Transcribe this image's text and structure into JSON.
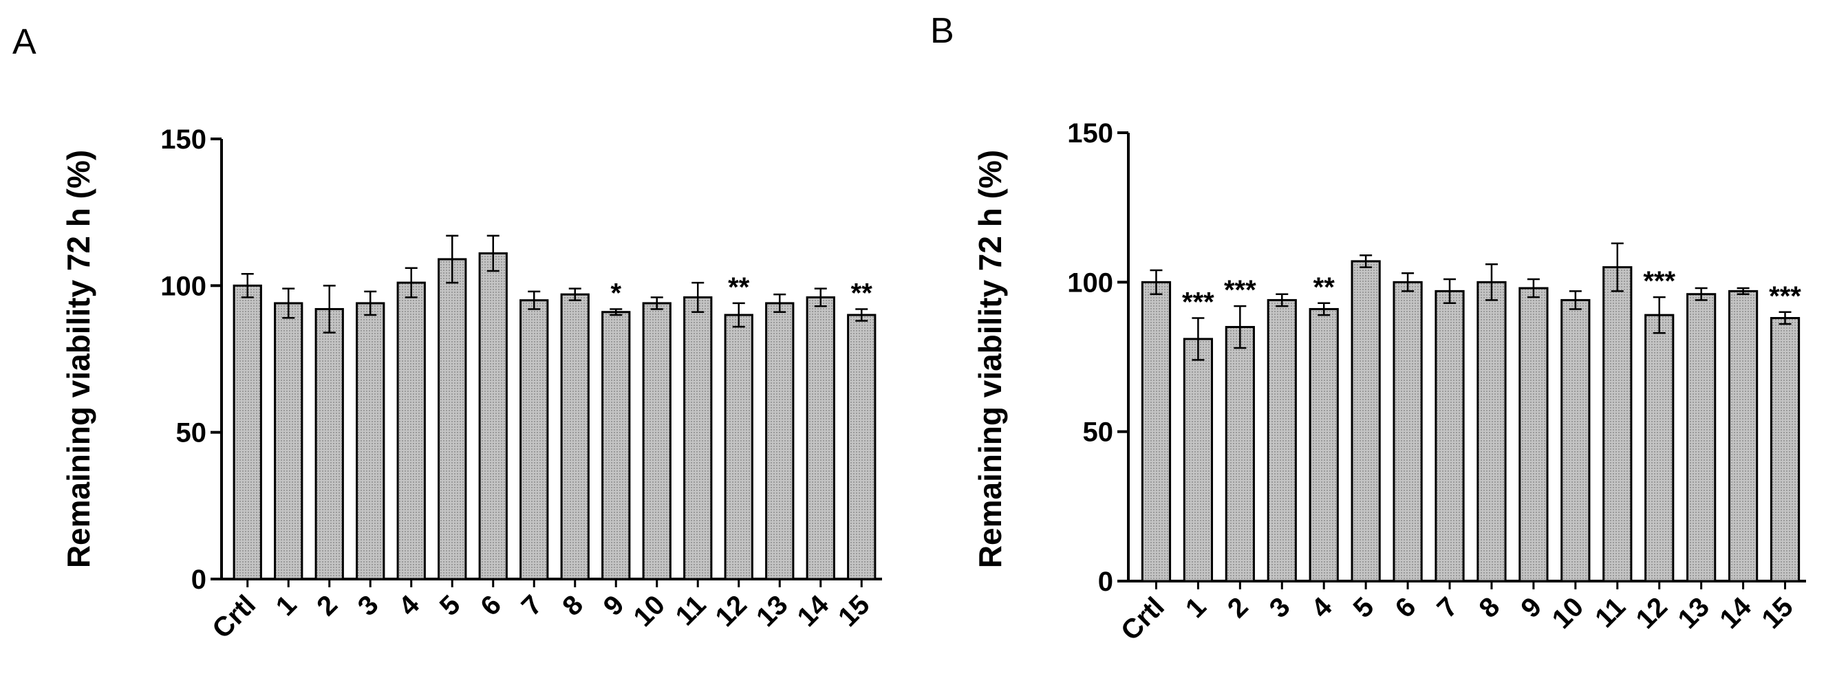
{
  "chart_data": [
    {
      "panel": "A",
      "type": "bar",
      "ylabel": "Remaining viability 72 h (%)",
      "xlabel": "",
      "ylim": [
        0,
        150
      ],
      "yticks": [
        "0",
        "50",
        "100",
        "150"
      ],
      "categories": [
        "Crtl",
        "1",
        "2",
        "3",
        "4",
        "5",
        "6",
        "7",
        "8",
        "9",
        "10",
        "11",
        "12",
        "13",
        "14",
        "15"
      ],
      "values": [
        100,
        94,
        92,
        94,
        101,
        109,
        111,
        95,
        97,
        91,
        94,
        96,
        90,
        94,
        96,
        90
      ],
      "errors": [
        4,
        5,
        8,
        4,
        5,
        8,
        6,
        3,
        2,
        1,
        2,
        5,
        4,
        3,
        3,
        2
      ],
      "annotations": [
        "",
        "",
        "",
        "",
        "",
        "",
        "",
        "",
        "",
        "*",
        "",
        "",
        "**",
        "",
        "",
        "**"
      ],
      "fill_color": "#b4b4b4"
    },
    {
      "panel": "B",
      "type": "bar",
      "ylabel": "Remaining viability 72 h (%)",
      "xlabel": "",
      "ylim": [
        0,
        150
      ],
      "yticks": [
        "0",
        "50",
        "100",
        "150"
      ],
      "categories": [
        "Crtl",
        "1",
        "2",
        "3",
        "4",
        "5",
        "6",
        "7",
        "8",
        "9",
        "10",
        "11",
        "12",
        "13",
        "14",
        "15"
      ],
      "values": [
        100,
        81,
        85,
        94,
        91,
        107,
        100,
        97,
        100,
        98,
        94,
        105,
        89,
        96,
        97,
        88
      ],
      "errors": [
        4,
        7,
        7,
        2,
        2,
        2,
        3,
        4,
        6,
        3,
        3,
        8,
        6,
        2,
        1,
        2
      ],
      "annotations": [
        "",
        "***",
        "***",
        "",
        "**",
        "",
        "",
        "",
        "",
        "",
        "",
        "",
        "***",
        "",
        "",
        "***"
      ],
      "fill_color": "#b4b4b4"
    }
  ]
}
